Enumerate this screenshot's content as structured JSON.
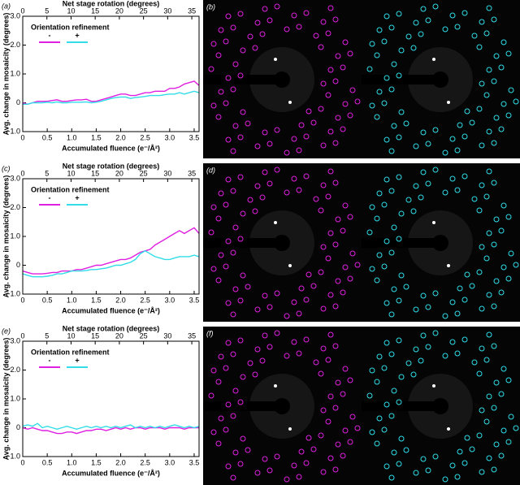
{
  "chart_data": [
    {
      "type": "line",
      "panel_label": "(a)",
      "x_label": "Accumulated fluence (e⁻/Å²)",
      "x2_label": "Net stage rotation (degrees)",
      "y_label": "Avg. change in mosaicity (degrees)",
      "legend_title": "Orientation refinement",
      "x": [
        0,
        0.1,
        0.2,
        0.3,
        0.4,
        0.5,
        0.6,
        0.7,
        0.8,
        0.9,
        1.0,
        1.1,
        1.2,
        1.3,
        1.4,
        1.5,
        1.6,
        1.7,
        1.8,
        1.9,
        2.0,
        2.1,
        2.2,
        2.3,
        2.4,
        2.5,
        2.6,
        2.7,
        2.8,
        2.9,
        3.0,
        3.1,
        3.2,
        3.3,
        3.4,
        3.5,
        3.6
      ],
      "series": [
        {
          "name": "-",
          "color": "#e020e0",
          "values": [
            0,
            -0.05,
            0,
            0.05,
            0.05,
            0.05,
            0.08,
            0.1,
            0.05,
            0.05,
            0.08,
            0.1,
            0.1,
            0.12,
            0.05,
            0.05,
            0.1,
            0.15,
            0.2,
            0.25,
            0.3,
            0.3,
            0.25,
            0.25,
            0.3,
            0.35,
            0.35,
            0.4,
            0.4,
            0.4,
            0.5,
            0.5,
            0.55,
            0.65,
            0.7,
            0.75,
            0.6
          ]
        },
        {
          "name": "+",
          "color": "#30dde8",
          "values": [
            -0.05,
            -0.05,
            0,
            0,
            0,
            0.02,
            0,
            0.03,
            0,
            0,
            0.02,
            0.02,
            0.02,
            0.03,
            0,
            0.02,
            0.05,
            0.1,
            0.15,
            0.18,
            0.2,
            0.2,
            0.15,
            0.18,
            0.2,
            0.22,
            0.25,
            0.25,
            0.25,
            0.28,
            0.3,
            0.3,
            0.35,
            0.3,
            0.35,
            0.4,
            0.35
          ]
        }
      ],
      "xlim": [
        0,
        3.6
      ],
      "xticks": [
        0,
        0.5,
        {
          "value": 1,
          "label": "1.0"
        },
        1.5,
        {
          "value": 2,
          "label": "2.0"
        },
        2.5,
        {
          "value": 3,
          "label": "3.0"
        },
        3.5
      ],
      "x2lim": [
        0,
        36.5
      ],
      "x2ticks": [
        0,
        5,
        10,
        15,
        20,
        25,
        30,
        35
      ],
      "ylim": [
        -1,
        3
      ],
      "yticks": [
        {
          "value": -1,
          "label": "-1.0"
        },
        0,
        {
          "value": 1,
          "label": "1.0"
        },
        {
          "value": 2,
          "label": "2.0"
        },
        {
          "value": 3,
          "label": "3.0"
        }
      ]
    },
    {
      "type": "line",
      "panel_label": "(c)",
      "x_label": "Accumulated fluence (e⁻/Å²)",
      "x2_label": "Net stage rotation (degrees)",
      "y_label": "Avg. change in mosaicity (degrees)",
      "legend_title": "Orientation refinement",
      "x": [
        0,
        0.1,
        0.2,
        0.3,
        0.4,
        0.5,
        0.6,
        0.7,
        0.8,
        0.9,
        1.0,
        1.1,
        1.2,
        1.3,
        1.4,
        1.5,
        1.6,
        1.7,
        1.8,
        1.9,
        2.0,
        2.1,
        2.2,
        2.3,
        2.4,
        2.5,
        2.6,
        2.7,
        2.8,
        2.9,
        3.0,
        3.1,
        3.2,
        3.3,
        3.4,
        3.5,
        3.6
      ],
      "series": [
        {
          "name": "-",
          "color": "#e020e0",
          "values": [
            -0.2,
            -0.25,
            -0.3,
            -0.3,
            -0.3,
            -0.28,
            -0.25,
            -0.25,
            -0.2,
            -0.2,
            -0.2,
            -0.15,
            -0.15,
            -0.1,
            -0.05,
            0,
            0,
            0.05,
            0.1,
            0.15,
            0.2,
            0.2,
            0.25,
            0.35,
            0.45,
            0.5,
            0.55,
            0.7,
            0.8,
            0.9,
            1.0,
            1.1,
            1.2,
            1.1,
            1.2,
            1.3,
            1.1
          ]
        },
        {
          "name": "+",
          "color": "#30dde8",
          "values": [
            -0.3,
            -0.35,
            -0.4,
            -0.4,
            -0.4,
            -0.38,
            -0.35,
            -0.3,
            -0.3,
            -0.25,
            -0.2,
            -0.2,
            -0.2,
            -0.18,
            -0.15,
            -0.15,
            -0.12,
            -0.1,
            -0.05,
            0,
            0,
            0.05,
            0.1,
            0.2,
            0.4,
            0.5,
            0.4,
            0.3,
            0.25,
            0.2,
            0.2,
            0.25,
            0.3,
            0.3,
            0.3,
            0.35,
            0.3
          ]
        }
      ],
      "xlim": [
        0,
        3.6
      ],
      "xticks": [
        0,
        0.5,
        {
          "value": 1,
          "label": "1.0"
        },
        1.5,
        {
          "value": 2,
          "label": "2.0"
        },
        2.5,
        {
          "value": 3,
          "label": "3.0"
        },
        3.5
      ],
      "x2lim": [
        0,
        36.5
      ],
      "x2ticks": [
        0,
        5,
        10,
        15,
        20,
        25,
        30,
        35
      ],
      "ylim": [
        -1,
        3
      ],
      "yticks": [
        {
          "value": -1,
          "label": "-1.0"
        },
        0,
        {
          "value": 1,
          "label": "1.0"
        },
        {
          "value": 2,
          "label": "2.0"
        },
        {
          "value": 3,
          "label": "3.0"
        }
      ]
    },
    {
      "type": "line",
      "panel_label": "(e)",
      "x_label": "Accumulated fluence (e⁻/Å²)",
      "x2_label": "Net stage rotation (degrees)",
      "y_label": "Avg. change in mosaicity (degrees)",
      "legend_title": "Orientation refinement",
      "x": [
        0,
        0.1,
        0.2,
        0.3,
        0.4,
        0.5,
        0.6,
        0.7,
        0.8,
        0.9,
        1.0,
        1.1,
        1.2,
        1.3,
        1.4,
        1.5,
        1.6,
        1.7,
        1.8,
        1.9,
        2.0,
        2.1,
        2.2,
        2.3,
        2.4,
        2.5,
        2.6,
        2.7,
        2.8,
        2.9,
        3.0,
        3.1,
        3.2,
        3.3,
        3.4,
        3.5,
        3.6
      ],
      "series": [
        {
          "name": "-",
          "color": "#e020e0",
          "values": [
            0,
            -0.05,
            0,
            -0.05,
            -0.1,
            -0.1,
            -0.15,
            -0.2,
            -0.2,
            -0.15,
            -0.15,
            -0.2,
            -0.15,
            -0.1,
            -0.1,
            -0.05,
            -0.05,
            -0.1,
            -0.05,
            0,
            -0.05,
            0,
            -0.05,
            0,
            0,
            -0.05,
            0,
            0,
            0,
            -0.05,
            0,
            0,
            0,
            -0.05,
            0,
            0,
            0
          ]
        },
        {
          "name": "+",
          "color": "#30dde8",
          "values": [
            0.05,
            0.1,
            0.05,
            0.15,
            0,
            0.05,
            0,
            -0.05,
            0,
            0.05,
            0,
            -0.05,
            0,
            0.05,
            0,
            0.05,
            0,
            0.05,
            0,
            0.05,
            0,
            0.05,
            0.1,
            0,
            0.05,
            0,
            0.05,
            0,
            0.05,
            0,
            0.05,
            0.1,
            0.05,
            0,
            0.05,
            0,
            0.05
          ]
        }
      ],
      "xlim": [
        0,
        3.6
      ],
      "xticks": [
        0,
        0.5,
        {
          "value": 1,
          "label": "1.0"
        },
        1.5,
        {
          "value": 2,
          "label": "2.0"
        },
        2.5,
        {
          "value": 3,
          "label": "3.0"
        },
        3.5
      ],
      "x2lim": [
        0,
        36.5
      ],
      "x2ticks": [
        0,
        5,
        10,
        15,
        20,
        25,
        30,
        35
      ],
      "ylim": [
        -1,
        3
      ],
      "yticks": [
        {
          "value": -1,
          "label": "-1.0"
        },
        0,
        {
          "value": 1,
          "label": "1.0"
        },
        {
          "value": 2,
          "label": "2.0"
        },
        {
          "value": 3,
          "label": "3.0"
        }
      ]
    }
  ],
  "images": [
    {
      "label": "(b)"
    },
    {
      "label": "(d)"
    },
    {
      "label": "(f)"
    }
  ]
}
